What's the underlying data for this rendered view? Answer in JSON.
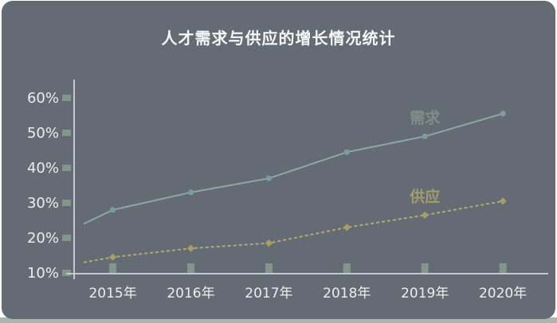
{
  "title": "人才需求与供应的增长情况统计",
  "colors": {
    "page_bg": "#ffffff",
    "card_bg": "#646b74",
    "bottom_strip": "#a8b6af",
    "title_color": "#f5f6f6",
    "axis_line": "#c2c8cb",
    "tick_mark": "#82968c",
    "axis_label": "#eceeee",
    "demand_line": "#8fa7a5",
    "demand_marker": "#7d9b99",
    "demand_label": "#7f8f88",
    "supply_line": "#b1aa75",
    "supply_marker": "#a7a065",
    "supply_label": "#a29d6c"
  },
  "chart_data": {
    "type": "line",
    "title": "人才需求与供应的增长情况统计",
    "categories": [
      "2015年",
      "2016年",
      "2017年",
      "2018年",
      "2019年",
      "2020年"
    ],
    "series": [
      {
        "key": "demand",
        "name": "需求",
        "values": [
          28,
          33,
          37,
          44.5,
          49,
          55.5
        ],
        "lead_in": 24,
        "style": "solid",
        "marker": "circle"
      },
      {
        "key": "supply",
        "name": "供应",
        "values": [
          14.5,
          17,
          18.5,
          23,
          26.5,
          30.5
        ],
        "lead_in": 13,
        "style": "dashed",
        "marker": "diamond"
      }
    ],
    "xlabel": "",
    "ylabel": "",
    "ylim": [
      10,
      60
    ],
    "ytick_step": 10,
    "ytick_labels": [
      "10%",
      "20%",
      "30%",
      "40%",
      "50%",
      "60%"
    ],
    "grid": false,
    "legend_position": "labels-above-2019-points"
  }
}
